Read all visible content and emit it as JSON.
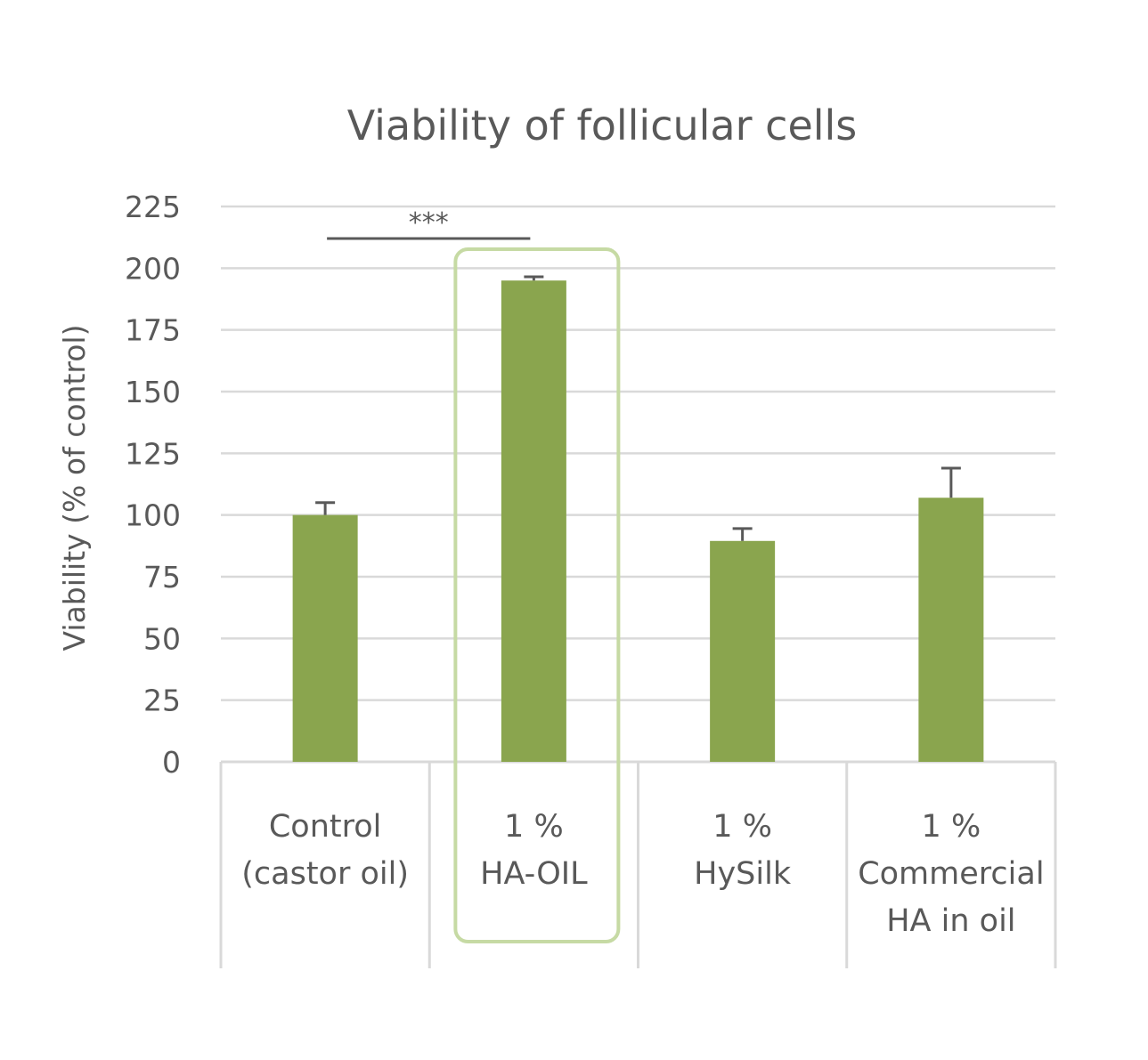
{
  "chart_data": {
    "type": "bar",
    "title": "Viability of follicular cells",
    "ylabel": "Viability (% of control)",
    "xlabel": "",
    "ylim": [
      0,
      225
    ],
    "yticks": [
      "0",
      "25",
      "50",
      "75",
      "100",
      "125",
      "150",
      "175",
      "200",
      "225"
    ],
    "grid": true,
    "categories": [
      [
        "Control",
        "(castor oil)"
      ],
      [
        "1 %",
        "HA-OIL"
      ],
      [
        "1 %",
        "HySilk"
      ],
      [
        "1 %",
        "Commercial",
        "HA in oil"
      ]
    ],
    "values": [
      100,
      195,
      89.5,
      107
    ],
    "error": [
      5,
      1.5,
      5,
      12
    ],
    "significance": {
      "label": "***",
      "from": 0,
      "to": 1,
      "level": 212
    },
    "highlight": {
      "category_index": 1
    },
    "colors": {
      "bar": "#8AA54E",
      "highlight_border": "#C6DAA4",
      "grid": "#D9D9D9",
      "text": "#595959",
      "error_bar": "#595959"
    }
  }
}
